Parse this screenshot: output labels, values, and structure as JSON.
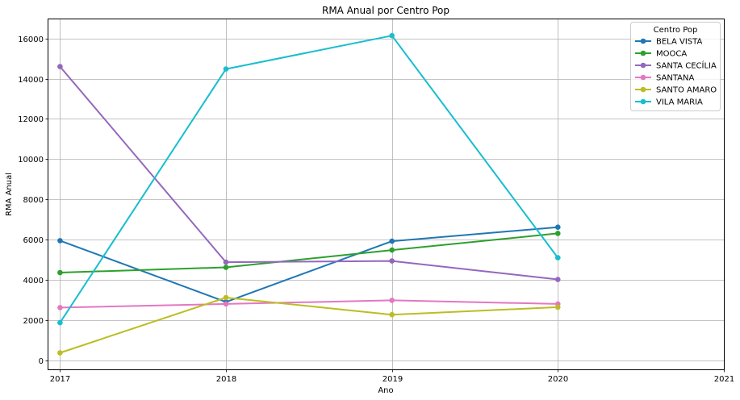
{
  "chart_data": {
    "type": "line",
    "title": "RMA Anual por Centro Pop",
    "xlabel": "Ano",
    "ylabel": "RMA Anual",
    "x": [
      2017,
      2018,
      2019,
      2020
    ],
    "xlim": [
      2016.93,
      2021
    ],
    "ylim": [
      -450,
      16950
    ],
    "xticks": [
      2017,
      2018,
      2019,
      2020,
      2021
    ],
    "yticks": [
      0,
      2000,
      4000,
      6000,
      8000,
      10000,
      12000,
      14000,
      16000
    ],
    "grid": true,
    "legend": {
      "title": "Centro Pop",
      "position": "top-right"
    },
    "series": [
      {
        "name": "BELA VISTA",
        "color": "#1f77b4",
        "values": [
          5950,
          2900,
          5920,
          6620
        ]
      },
      {
        "name": "MOOCA",
        "color": "#2ca02c",
        "values": [
          4360,
          4620,
          5480,
          6310
        ]
      },
      {
        "name": "SANTA CECÍLIA",
        "color": "#9467bd",
        "values": [
          14600,
          4880,
          4940,
          4020
        ]
      },
      {
        "name": "SANTANA",
        "color": "#e377c2",
        "values": [
          2620,
          2800,
          2980,
          2800
        ]
      },
      {
        "name": "SANTO AMARO",
        "color": "#bcbd22",
        "values": [
          370,
          3120,
          2270,
          2640
        ]
      },
      {
        "name": "VILA MARIA",
        "color": "#17becf",
        "values": [
          1870,
          14480,
          16140,
          5100
        ]
      }
    ]
  }
}
